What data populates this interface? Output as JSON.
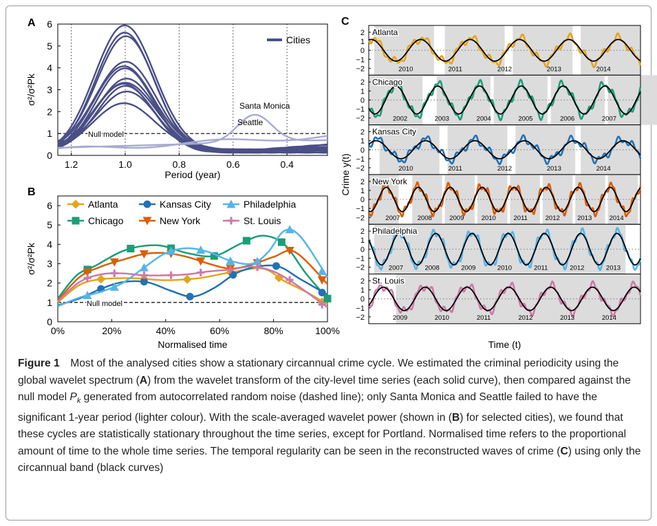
{
  "panel_labels": {
    "a": "A",
    "b": "B",
    "c": "C"
  },
  "chart_data": [
    {
      "type": "line",
      "panel": "A",
      "xlabel": "Period (year)",
      "ylabel": "σ²/σ²Pk",
      "xlim": [
        1.25,
        0.25
      ],
      "ylim": [
        0,
        6
      ],
      "xticks": [
        "1.2",
        "1.0",
        "0.8",
        "0.6",
        "0.4"
      ],
      "yticks": [
        "0",
        "1",
        "2",
        "3",
        "4",
        "5",
        "6"
      ],
      "legend": {
        "label": "Cities",
        "placement": "top-right"
      },
      "null_model": {
        "label": "Null model",
        "value": 1.0
      },
      "cities_peaks": [
        5.8,
        5.35,
        5.2,
        4.15,
        3.9,
        3.7,
        3.3,
        3.2,
        3.05,
        2.9,
        2.75,
        2.25
      ],
      "highlighted": [
        {
          "label": "Santa Monica",
          "peak_period": 0.52,
          "peak_value": 2.0
        },
        {
          "label": "Seattle",
          "peak_period": 0.58,
          "peak_value": 1.05
        }
      ],
      "colors": {
        "cities": "#4a4f86",
        "light": "#a7abd2"
      }
    },
    {
      "type": "line",
      "panel": "B",
      "xlabel": "Normalised time",
      "ylabel": "σ²/σ²Pk",
      "xlim": [
        0,
        100
      ],
      "ylim": [
        0,
        6.5
      ],
      "xticks": [
        "0%",
        "20%",
        "40%",
        "60%",
        "80%",
        "100%"
      ],
      "yticks": [
        "0",
        "1",
        "2",
        "3",
        "4",
        "5",
        "6"
      ],
      "null_model": {
        "label": "Null model",
        "value": 1.0
      },
      "legend_placement": "top",
      "series": [
        {
          "name": "Atlanta",
          "color": "#e5a31d",
          "marker": "diamond",
          "x": [
            0,
            8,
            16,
            28,
            40,
            52,
            64,
            76,
            84,
            92,
            100
          ],
          "y": [
            1.0,
            1.9,
            2.2,
            2.25,
            2.15,
            2.25,
            2.55,
            2.75,
            2.1,
            1.55,
            0.9
          ],
          "markers": [
            16,
            32,
            48,
            64,
            82,
            98
          ]
        },
        {
          "name": "Chicago",
          "color": "#1b9e77",
          "marker": "square",
          "x": [
            0,
            7,
            14,
            25,
            37,
            48,
            58,
            68,
            76,
            84,
            92,
            100
          ],
          "y": [
            1.2,
            2.4,
            2.9,
            3.7,
            3.95,
            3.55,
            3.4,
            4.05,
            4.45,
            4.0,
            2.5,
            1.2
          ],
          "markers": [
            11,
            27,
            42,
            58,
            70,
            83,
            100
          ]
        },
        {
          "name": "Kansas City",
          "color": "#2171b5",
          "marker": "circle",
          "x": [
            0,
            8,
            16,
            24,
            33,
            42,
            50,
            58,
            66,
            74,
            82,
            90,
            100
          ],
          "y": [
            0.85,
            1.2,
            1.7,
            2.05,
            2.05,
            1.6,
            1.3,
            1.75,
            2.5,
            2.85,
            2.85,
            2.2,
            1.4
          ],
          "markers": [
            16,
            32,
            49,
            65,
            81,
            98
          ]
        },
        {
          "name": "New York",
          "color": "#d95f02",
          "marker": "triangle-down",
          "x": [
            0,
            8,
            16,
            24,
            32,
            40,
            48,
            56,
            64,
            72,
            80,
            88,
            100
          ],
          "y": [
            1.1,
            2.3,
            2.85,
            3.2,
            3.5,
            3.55,
            3.35,
            3.0,
            2.75,
            2.95,
            3.35,
            3.6,
            1.95
          ],
          "markers": [
            11,
            21,
            32,
            42,
            53,
            64,
            74,
            86,
            98
          ]
        },
        {
          "name": "Philadelphia",
          "color": "#56b4e9",
          "marker": "triangle-up",
          "x": [
            0,
            8,
            16,
            24,
            32,
            40,
            48,
            56,
            64,
            72,
            78,
            84,
            90,
            100
          ],
          "y": [
            0.8,
            1.25,
            1.55,
            2.0,
            2.8,
            3.55,
            3.8,
            3.6,
            3.15,
            3.0,
            3.6,
            4.7,
            4.4,
            2.3
          ],
          "markers": [
            11,
            21,
            32,
            42,
            53,
            64,
            74,
            86,
            98
          ]
        },
        {
          "name": "St. Louis",
          "color": "#cc79a7",
          "marker": "plus",
          "x": [
            0,
            8,
            16,
            24,
            32,
            40,
            48,
            56,
            64,
            72,
            80,
            88,
            100
          ],
          "y": [
            1.05,
            2.05,
            2.45,
            2.5,
            2.4,
            2.4,
            2.45,
            2.6,
            2.7,
            2.85,
            2.6,
            1.95,
            0.75
          ],
          "markers": [
            11,
            21,
            32,
            42,
            53,
            64,
            74,
            86,
            98
          ]
        }
      ]
    },
    {
      "type": "line",
      "panel": "C",
      "xlabel": "Time (t)",
      "ylabel": "Crime  y(t)",
      "yticks": [
        "2",
        "1",
        "0",
        "−1",
        "−2"
      ],
      "series": [
        {
          "name": "Atlanta",
          "color": "#e5a31d",
          "years": [
            "2010",
            "2011",
            "2012",
            "2013",
            "2014"
          ]
        },
        {
          "name": "Chicago",
          "color": "#1b9e77",
          "years": [
            "2002",
            "2003",
            "2004",
            "2005",
            "2006",
            "2007"
          ]
        },
        {
          "name": "Kansas City",
          "color": "#2171b5",
          "years": [
            "2010",
            "2011",
            "2012",
            "2013",
            "2014"
          ]
        },
        {
          "name": "New York",
          "color": "#d95f02",
          "years": [
            "2007",
            "2008",
            "2009",
            "2010",
            "2011",
            "2012",
            "2013",
            "2014"
          ]
        },
        {
          "name": "Philadelphia",
          "color": "#56b4e9",
          "years": [
            "2007",
            "2008",
            "2009",
            "2010",
            "2011",
            "2012",
            "2013"
          ]
        },
        {
          "name": "St. Louis",
          "color": "#cc79a7",
          "years": [
            "2009",
            "2010",
            "2011",
            "2012",
            "2013",
            "2014"
          ]
        }
      ]
    }
  ],
  "caption": {
    "label": "Figure 1",
    "parts": [
      {
        "t": "Most of the analysed cities show a stationary circannual crime cycle. We estimated the criminal periodicity using the global wavelet spectrum ("
      },
      {
        "t": "A",
        "s": "b"
      },
      {
        "t": ") from the wavelet transform of the city-level time series (each solid curve), then compared against the null model "
      },
      {
        "t": "P",
        "s": "i"
      },
      {
        "t": "k",
        "s": "sub"
      },
      {
        "t": " generated from autocorrelated random noise (dashed line); only Santa Monica and Seattle failed to have the significant 1-year period (lighter colour). With the scale-averaged wavelet power (shown in ("
      },
      {
        "t": "B",
        "s": "b"
      },
      {
        "t": ") for selected cities), we found that these cycles are statistically stationary throughout the time series, except for Portland. Normalised time refers to the proportional amount of time to the whole time series. The temporal regularity can be seen in the reconstructed waves of crime ("
      },
      {
        "t": "C",
        "s": "b"
      },
      {
        "t": ") using only the circannual band (black curves)"
      }
    ]
  }
}
